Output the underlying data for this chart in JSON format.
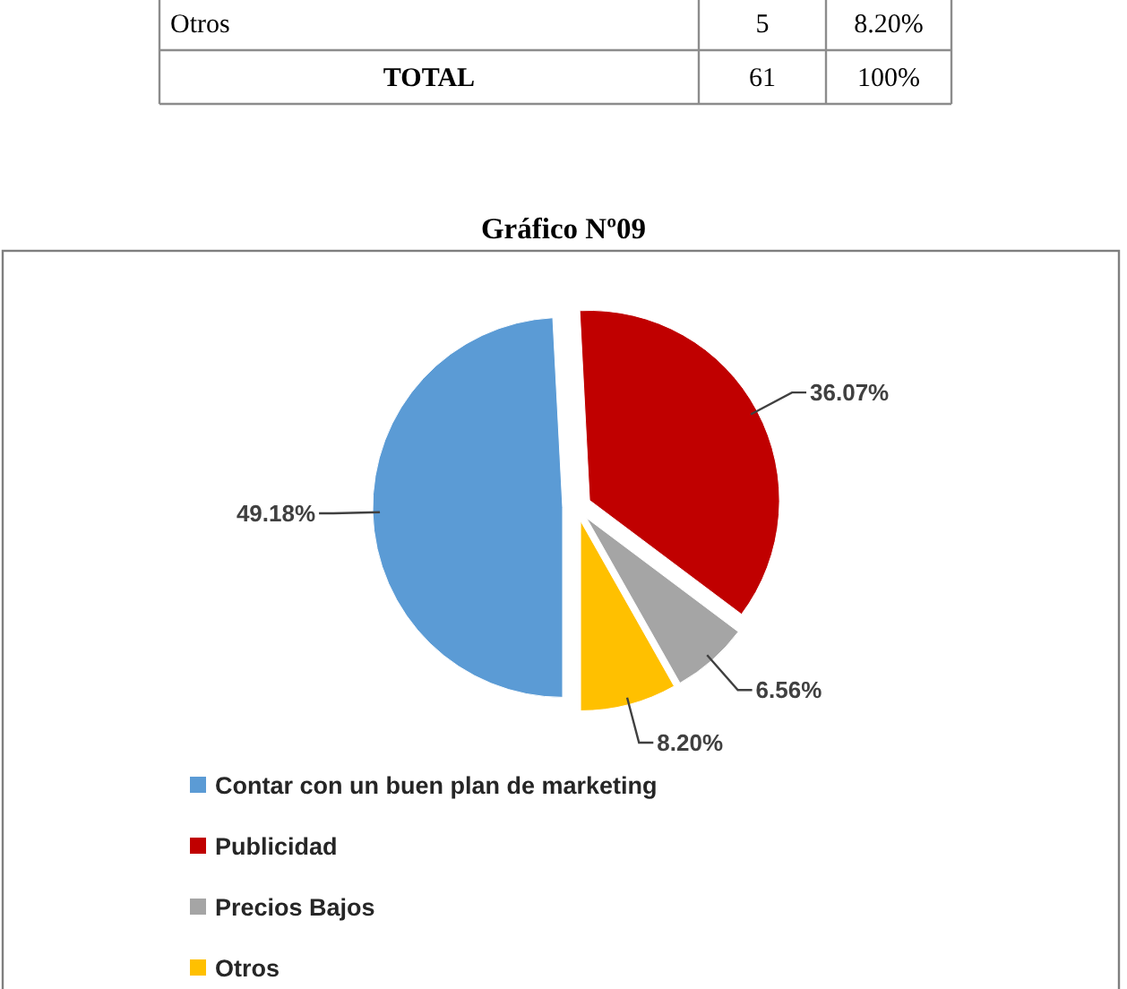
{
  "chart_data": [
    {
      "type": "other",
      "annotations": [
        "Otros",
        "5",
        "8.20%",
        "TOTAL",
        "61",
        "100%"
      ]
    },
    {
      "type": "pie",
      "title": "Gráfico Nº09",
      "categories": [
        "Contar con un buen plan de marketing",
        "Publicidad",
        "Precios Bajos",
        "Otros"
      ],
      "values": [
        49.18,
        36.07,
        6.56,
        8.2
      ],
      "colors": [
        "#5b9bd5",
        "#c00000",
        "#a5a5a5",
        "#ffc000"
      ],
      "value_labels": [
        "49.18%",
        "36.07%",
        "6.56%",
        "8.20%"
      ],
      "legend": "bottom left"
    }
  ]
}
